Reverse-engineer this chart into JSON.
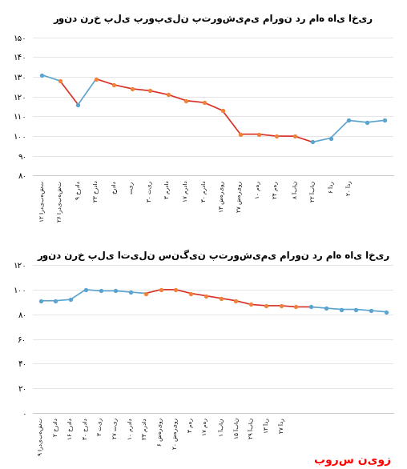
{
  "chart1": {
    "title": "روند نرخ پلی پروپیلن پتروشیمی مارون در ماه های اخیر",
    "xlabels": [
      "۱۲ اردیبهشت",
      "۲۶ اردیبهشت",
      "۹ خرداد",
      "۲۳ خرداد",
      "خرداد",
      "تیر",
      "۳۰ تیر",
      "۳ مرداد",
      "۱۷ مرداد",
      "۳۰ مرداد",
      "۱۳ شهریور",
      "۲۷ شهریور",
      "۱۰ مهر",
      "۲۴ مهر",
      "۸ آبان",
      "۲۲ آبان",
      "۶ آذر",
      "۲۰ آذر"
    ],
    "values": [
      131,
      128,
      116,
      129,
      126,
      124,
      123,
      121,
      118,
      117,
      113,
      101,
      101,
      100,
      100,
      97,
      99,
      108,
      107,
      108
    ],
    "ylim": [
      80,
      155
    ],
    "yticks": [
      80,
      90,
      100,
      110,
      120,
      130,
      140,
      150
    ],
    "line_segs": [
      [
        0,
        1,
        "blue"
      ],
      [
        1,
        2,
        "red"
      ],
      [
        2,
        3,
        "blue"
      ],
      [
        3,
        15,
        "red"
      ],
      [
        15,
        19,
        "blue"
      ]
    ],
    "dot_segs": [
      [
        0,
        0,
        "blue"
      ],
      [
        1,
        1,
        "orange"
      ],
      [
        2,
        2,
        "blue"
      ],
      [
        3,
        14,
        "orange"
      ],
      [
        15,
        19,
        "blue"
      ]
    ],
    "dot_color_orange": "#f0833a",
    "dot_color_blue": "#5ba4cf",
    "line_color_red": "#d93025",
    "line_color_blue": "#5ba4cf"
  },
  "chart2": {
    "title": "روند نرخ پلی اتیلن سنگین پتروشیمی مارون در ماه های اخیر",
    "xlabels": [
      "۹ اردیبهشت",
      "۲ خرداد",
      "۱۶ خرداد",
      "۳۰ خرداد",
      "۳ تیر",
      "۲۷ تیر",
      "۱۰ مرداد",
      "۲۳ مرداد",
      "۶ شهریور",
      "۲۰ شهریور",
      "۳ مهر",
      "۱۷ مهر",
      "۱ آبان",
      "۱۵ آبان",
      "۲۹ آبان",
      "۱۳ آذر",
      "۲۷ آذر"
    ],
    "values": [
      91,
      91,
      92,
      100,
      99,
      99,
      98,
      97,
      100,
      100,
      97,
      95,
      93,
      91,
      88,
      87,
      87,
      86,
      86,
      85,
      84,
      84,
      83,
      82
    ],
    "ylim": [
      0,
      120
    ],
    "yticks": [
      0,
      20,
      40,
      60,
      80,
      100,
      120
    ],
    "line_segs": [
      [
        0,
        7,
        "blue"
      ],
      [
        7,
        18,
        "red"
      ],
      [
        18,
        23,
        "blue"
      ]
    ],
    "dot_segs": [
      [
        0,
        6,
        "blue"
      ],
      [
        7,
        17,
        "orange"
      ],
      [
        18,
        23,
        "blue"
      ]
    ],
    "dot_color_orange": "#f0833a",
    "dot_color_blue": "#5ba4cf",
    "line_color_red": "#d93025",
    "line_color_blue": "#5ba4cf"
  },
  "bg_color": "#ffffff",
  "watermark": "بورس نیوز"
}
